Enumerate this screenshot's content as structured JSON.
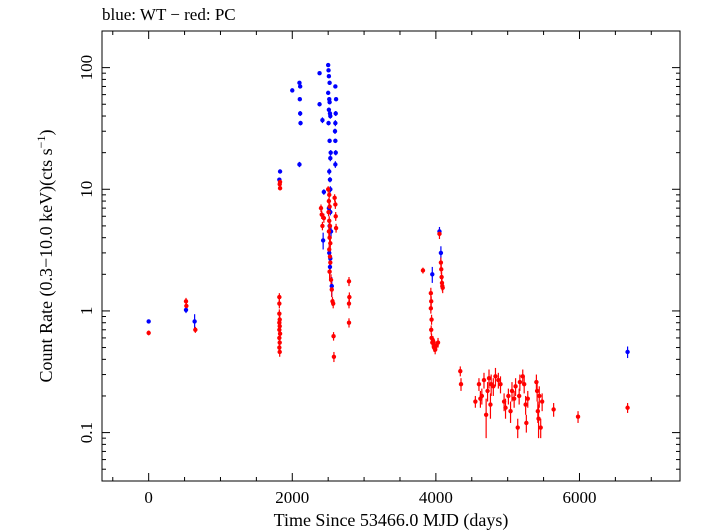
{
  "chart_data": {
    "type": "scatter",
    "title": "blue: WT − red: PC",
    "xlabel": "Time Since 53466.0 MJD (days)",
    "ylabel_main": "Count Rate (0.3−10.0 keV)(cts s",
    "ylabel_sup": "−1",
    "ylabel_end": ")",
    "xlim": [
      -650,
      7400
    ],
    "ylim": [
      0.04,
      200
    ],
    "yscale": "log",
    "x_ticks": [
      0,
      2000,
      4000,
      6000
    ],
    "x_tick_labels": [
      "0",
      "2000",
      "4000",
      "6000"
    ],
    "y_ticks": [
      0.1,
      1,
      10,
      100
    ],
    "y_tick_labels": [
      "0.1",
      "1",
      "10",
      "100"
    ],
    "colors": {
      "wt": "#0000ff",
      "pc": "#ff0000"
    },
    "series": [
      {
        "name": "WT",
        "color": "#0000ff",
        "points": [
          [
            0,
            0.82,
            0.03
          ],
          [
            520,
            1.02,
            0.06
          ],
          [
            640,
            0.82,
            0.12
          ],
          [
            1820,
            12,
            0.5
          ],
          [
            1830,
            14,
            0.5
          ],
          [
            2000,
            65,
            2
          ],
          [
            2100,
            75,
            2
          ],
          [
            2110,
            70,
            2
          ],
          [
            2105,
            55,
            2
          ],
          [
            2110,
            42,
            2
          ],
          [
            2115,
            35,
            1.5
          ],
          [
            2100,
            16,
            0.8
          ],
          [
            2380,
            90,
            3
          ],
          [
            2380,
            50,
            2
          ],
          [
            2420,
            37,
            2
          ],
          [
            2440,
            9.5,
            0.5
          ],
          [
            2430,
            3.8,
            0.6
          ],
          [
            2500,
            105,
            3
          ],
          [
            2505,
            95,
            3
          ],
          [
            2510,
            85,
            3
          ],
          [
            2520,
            75,
            3
          ],
          [
            2500,
            62,
            2
          ],
          [
            2515,
            55,
            2
          ],
          [
            2520,
            52,
            2
          ],
          [
            2510,
            45,
            2
          ],
          [
            2525,
            42,
            2
          ],
          [
            2530,
            40,
            2
          ],
          [
            2505,
            35,
            1.5
          ],
          [
            2520,
            25,
            1
          ],
          [
            2535,
            20,
            1
          ],
          [
            2530,
            18,
            1
          ],
          [
            2515,
            14,
            0.8
          ],
          [
            2525,
            12,
            0.6
          ],
          [
            2530,
            10,
            0.6
          ],
          [
            2510,
            7,
            0.4
          ],
          [
            2530,
            6.5,
            0.4
          ],
          [
            2520,
            5,
            0.5
          ],
          [
            2540,
            4.5,
            0.5
          ],
          [
            2515,
            3,
            0.4
          ],
          [
            2530,
            2.7,
            0.4
          ],
          [
            2525,
            2.3,
            0.3
          ],
          [
            2550,
            1.6,
            0.3
          ],
          [
            2600,
            70,
            2
          ],
          [
            2610,
            55,
            2
          ],
          [
            2605,
            42,
            2
          ],
          [
            2600,
            35,
            2
          ],
          [
            2595,
            30,
            1.5
          ],
          [
            2600,
            25,
            1
          ],
          [
            2605,
            20,
            1
          ],
          [
            2600,
            16,
            1
          ],
          [
            3950,
            2.0,
            0.3
          ],
          [
            4050,
            4.5,
            0.4
          ],
          [
            4070,
            3.0,
            0.4
          ],
          [
            6670,
            0.46,
            0.05
          ]
        ]
      },
      {
        "name": "PC",
        "color": "#ff0000",
        "points": [
          [
            0,
            0.66,
            0.03
          ],
          [
            520,
            1.2,
            0.08
          ],
          [
            525,
            1.1,
            0.08
          ],
          [
            650,
            0.7,
            0.04
          ],
          [
            1820,
            1.3,
            0.1
          ],
          [
            1820,
            1.15,
            0.1
          ],
          [
            1820,
            0.95,
            0.08
          ],
          [
            1825,
            0.85,
            0.07
          ],
          [
            1820,
            0.8,
            0.06
          ],
          [
            1825,
            0.75,
            0.06
          ],
          [
            1820,
            0.7,
            0.05
          ],
          [
            1830,
            0.65,
            0.05
          ],
          [
            1820,
            0.6,
            0.05
          ],
          [
            1825,
            0.55,
            0.04
          ],
          [
            1820,
            0.5,
            0.04
          ],
          [
            1825,
            0.46,
            0.04
          ],
          [
            1830,
            11.5,
            0.5
          ],
          [
            1825,
            11,
            0.5
          ],
          [
            1830,
            10.2,
            0.4
          ],
          [
            2400,
            7,
            0.5
          ],
          [
            2410,
            6.2,
            0.5
          ],
          [
            2420,
            5,
            0.4
          ],
          [
            2440,
            5.8,
            0.5
          ],
          [
            2500,
            10,
            0.6
          ],
          [
            2515,
            9,
            0.6
          ],
          [
            2510,
            8,
            0.5
          ],
          [
            2520,
            7.2,
            0.5
          ],
          [
            2505,
            6.5,
            0.5
          ],
          [
            2515,
            5.5,
            0.5
          ],
          [
            2525,
            5,
            0.4
          ],
          [
            2510,
            4.5,
            0.4
          ],
          [
            2520,
            4,
            0.4
          ],
          [
            2530,
            3.6,
            0.3
          ],
          [
            2515,
            3.2,
            0.3
          ],
          [
            2525,
            2.8,
            0.3
          ],
          [
            2530,
            2.5,
            0.3
          ],
          [
            2520,
            2.1,
            0.3
          ],
          [
            2540,
            1.8,
            0.2
          ],
          [
            2550,
            1.5,
            0.2
          ],
          [
            2560,
            1.2,
            0.1
          ],
          [
            2570,
            1.15,
            0.1
          ],
          [
            2575,
            0.62,
            0.05
          ],
          [
            2580,
            0.42,
            0.04
          ],
          [
            2590,
            8.5,
            0.6
          ],
          [
            2600,
            7.5,
            0.6
          ],
          [
            2605,
            6,
            0.5
          ],
          [
            2610,
            4.8,
            0.4
          ],
          [
            2790,
            1.75,
            0.15
          ],
          [
            2795,
            1.3,
            0.12
          ],
          [
            2790,
            1.15,
            0.1
          ],
          [
            2790,
            0.8,
            0.07
          ],
          [
            3820,
            2.15,
            0.12
          ],
          [
            3930,
            1.4,
            0.15
          ],
          [
            3935,
            1.2,
            0.12
          ],
          [
            3930,
            1.05,
            0.1
          ],
          [
            3940,
            0.85,
            0.08
          ],
          [
            3935,
            0.7,
            0.06
          ],
          [
            3940,
            0.6,
            0.05
          ],
          [
            3950,
            0.55,
            0.05
          ],
          [
            3960,
            0.57,
            0.05
          ],
          [
            3970,
            0.55,
            0.05
          ],
          [
            3975,
            0.5,
            0.04
          ],
          [
            3990,
            0.48,
            0.04
          ],
          [
            4010,
            0.52,
            0.04
          ],
          [
            4030,
            0.55,
            0.05
          ],
          [
            4050,
            4.3,
            0.4
          ],
          [
            4070,
            2.5,
            0.25
          ],
          [
            4075,
            2.2,
            0.2
          ],
          [
            4080,
            1.9,
            0.2
          ],
          [
            4085,
            1.7,
            0.15
          ],
          [
            4090,
            1.6,
            0.15
          ],
          [
            4095,
            1.55,
            0.15
          ],
          [
            4340,
            0.32,
            0.03
          ],
          [
            4350,
            0.25,
            0.03
          ],
          [
            4550,
            0.18,
            0.02
          ],
          [
            4600,
            0.25,
            0.03
          ],
          [
            4620,
            0.19,
            0.03
          ],
          [
            4640,
            0.2,
            0.03
          ],
          [
            4670,
            0.27,
            0.04
          ],
          [
            4700,
            0.14,
            0.05
          ],
          [
            4720,
            0.22,
            0.04
          ],
          [
            4740,
            0.28,
            0.05
          ],
          [
            4760,
            0.17,
            0.04
          ],
          [
            4770,
            0.25,
            0.05
          ],
          [
            4800,
            0.24,
            0.04
          ],
          [
            4830,
            0.29,
            0.05
          ],
          [
            4870,
            0.27,
            0.04
          ],
          [
            4900,
            0.25,
            0.04
          ],
          [
            4950,
            0.18,
            0.03
          ],
          [
            4970,
            0.16,
            0.03
          ],
          [
            5010,
            0.2,
            0.03
          ],
          [
            5040,
            0.15,
            0.03
          ],
          [
            5060,
            0.22,
            0.04
          ],
          [
            5090,
            0.19,
            0.03
          ],
          [
            5110,
            0.24,
            0.04
          ],
          [
            5140,
            0.11,
            0.02
          ],
          [
            5160,
            0.2,
            0.03
          ],
          [
            5170,
            0.26,
            0.04
          ],
          [
            5210,
            0.29,
            0.04
          ],
          [
            5230,
            0.25,
            0.04
          ],
          [
            5250,
            0.17,
            0.03
          ],
          [
            5260,
            0.12,
            0.02
          ],
          [
            5280,
            0.19,
            0.03
          ],
          [
            5400,
            0.26,
            0.04
          ],
          [
            5410,
            0.22,
            0.04
          ],
          [
            5420,
            0.15,
            0.03
          ],
          [
            5430,
            0.13,
            0.04
          ],
          [
            5440,
            0.2,
            0.04
          ],
          [
            5460,
            0.11,
            0.02
          ],
          [
            5480,
            0.18,
            0.03
          ],
          [
            5640,
            0.155,
            0.02
          ],
          [
            5980,
            0.135,
            0.015
          ],
          [
            6670,
            0.16,
            0.015
          ]
        ]
      }
    ]
  }
}
